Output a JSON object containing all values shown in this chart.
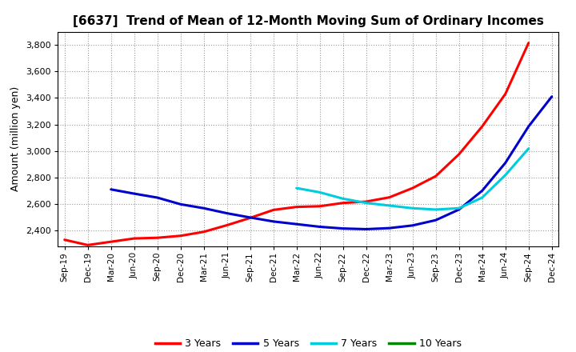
{
  "title": "[6637]  Trend of Mean of 12-Month Moving Sum of Ordinary Incomes",
  "ylabel": "Amount (million yen)",
  "background_color": "#ffffff",
  "plot_bg_color": "#ffffff",
  "grid_color": "#999999",
  "ylim": [
    2280,
    3900
  ],
  "yticks": [
    2400,
    2600,
    2800,
    3000,
    3200,
    3400,
    3600,
    3800
  ],
  "x_labels": [
    "Sep-19",
    "Dec-19",
    "Mar-20",
    "Jun-20",
    "Sep-20",
    "Dec-20",
    "Mar-21",
    "Jun-21",
    "Sep-21",
    "Dec-21",
    "Mar-22",
    "Jun-22",
    "Sep-22",
    "Dec-22",
    "Mar-23",
    "Jun-23",
    "Sep-23",
    "Dec-23",
    "Mar-24",
    "Jun-24",
    "Sep-24",
    "Dec-24"
  ],
  "series": {
    "3 Years": {
      "color": "#ff0000",
      "data": [
        2330,
        2290,
        2315,
        2340,
        2345,
        2360,
        2390,
        2440,
        2495,
        2555,
        2578,
        2583,
        2608,
        2618,
        2650,
        2720,
        2810,
        2975,
        3185,
        3430,
        3815,
        null
      ]
    },
    "5 Years": {
      "color": "#0000cc",
      "data": [
        null,
        null,
        2710,
        2678,
        2648,
        2598,
        2568,
        2530,
        2498,
        2468,
        2448,
        2428,
        2415,
        2410,
        2418,
        2438,
        2478,
        2558,
        2700,
        2910,
        3185,
        3410
      ]
    },
    "7 Years": {
      "color": "#00ccdd",
      "data": [
        null,
        null,
        null,
        null,
        null,
        null,
        null,
        null,
        null,
        null,
        2720,
        2688,
        2640,
        2608,
        2588,
        2568,
        2558,
        2568,
        2648,
        2818,
        3018,
        null
      ]
    },
    "10 Years": {
      "color": "#008800",
      "data": [
        null,
        null,
        null,
        null,
        null,
        null,
        null,
        null,
        null,
        null,
        null,
        null,
        null,
        null,
        null,
        null,
        null,
        null,
        null,
        null,
        null,
        null
      ]
    }
  },
  "legend_labels": [
    "3 Years",
    "5 Years",
    "7 Years",
    "10 Years"
  ],
  "legend_colors": [
    "#ff0000",
    "#0000cc",
    "#00ccdd",
    "#008800"
  ],
  "title_fontsize": 11,
  "axis_label_fontsize": 9,
  "tick_fontsize": 8,
  "x_tick_fontsize": 7.5,
  "linewidth": 2.2
}
